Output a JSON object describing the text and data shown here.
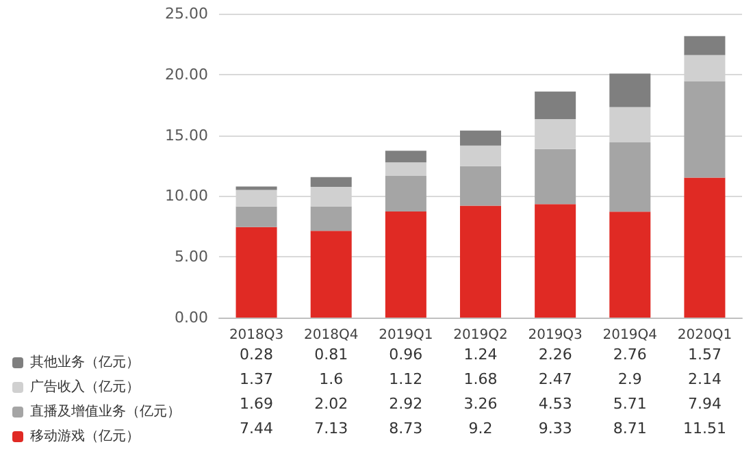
{
  "chart_data": {
    "type": "bar",
    "stacked": true,
    "data_labels": true,
    "grid": "y",
    "legend": "bottom left",
    "categories": [
      "2018Q3",
      "2018Q4",
      "2019Q1",
      "2019Q2",
      "2019Q3",
      "2019Q4",
      "2020Q1"
    ],
    "series": [
      {
        "name": "移动游戏（亿元）",
        "color": "#e02a24",
        "values": [
          7.44,
          7.13,
          8.73,
          9.2,
          9.33,
          8.71,
          11.51
        ]
      },
      {
        "name": "直播及增值业务（亿元）",
        "color": "#a5a5a5",
        "values": [
          1.69,
          2.02,
          2.92,
          3.26,
          4.53,
          5.71,
          7.94
        ]
      },
      {
        "name": "广告收入（亿元）",
        "color": "#d0d0d0",
        "values": [
          1.37,
          1.6,
          1.12,
          1.68,
          2.47,
          2.9,
          2.14
        ]
      },
      {
        "name": "其他业务（亿元）",
        "color": "#7f7f7f",
        "values": [
          0.28,
          0.81,
          0.96,
          1.24,
          2.26,
          2.76,
          1.57
        ]
      }
    ],
    "ylim": [
      0,
      25
    ],
    "yticks": [
      {
        "value": 0,
        "label": "0.00"
      },
      {
        "value": 5,
        "label": "5.00"
      },
      {
        "value": 10,
        "label": "10.00"
      },
      {
        "value": 15,
        "label": "15.00"
      },
      {
        "value": 20,
        "label": "20.00"
      },
      {
        "value": 25,
        "label": "25.00"
      }
    ]
  }
}
